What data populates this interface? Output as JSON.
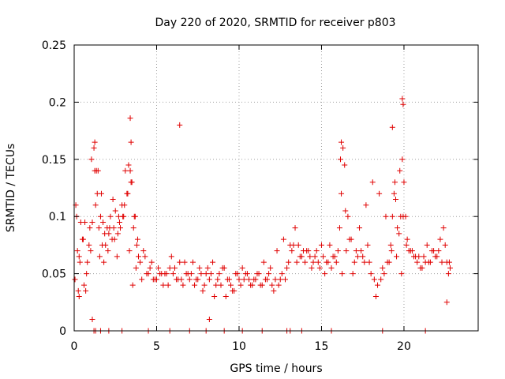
{
  "chart_data": {
    "type": "scatter",
    "title": "Day 220 of 2020, SRMTID for receiver p803",
    "xlabel": "GPS time / hours",
    "ylabel": "SRMTID / TECUs",
    "xlim": [
      0,
      24.5
    ],
    "ylim": [
      0,
      0.25
    ],
    "xticks": [
      0,
      5,
      10,
      15,
      20
    ],
    "xtick_labels": [
      "0",
      "5",
      "10",
      "15",
      "20"
    ],
    "yticks": [
      0,
      0.05,
      0.1,
      0.15,
      0.2,
      0.25
    ],
    "ytick_labels": [
      "0",
      "0.05",
      "0.1",
      "0.15",
      "0.2",
      "0.25"
    ],
    "grid": true,
    "marker": "plus",
    "color": "#e00000",
    "series": [
      {
        "name": "SRMTID",
        "x": [
          0.05,
          0.1,
          0.2,
          0.3,
          0.4,
          0.5,
          0.6,
          0.7,
          0.8,
          0.9,
          1.0,
          1.1,
          1.2,
          1.3,
          1.4,
          1.5,
          1.6,
          1.7,
          1.8,
          1.9,
          2.0,
          2.1,
          2.2,
          2.3,
          2.4,
          2.5,
          2.6,
          2.7,
          2.8,
          2.9,
          3.0,
          3.1,
          3.2,
          3.3,
          3.4,
          3.5,
          3.6,
          3.7,
          3.8,
          3.9,
          4.0,
          4.2,
          4.4,
          4.6,
          4.8,
          5.0,
          5.2,
          5.4,
          5.6,
          5.8,
          6.0,
          6.2,
          6.4,
          6.6,
          6.8,
          7.0,
          7.2,
          7.4,
          7.6,
          7.8,
          8.0,
          8.2,
          8.4,
          8.6,
          8.8,
          9.0,
          9.2,
          9.4,
          9.6,
          9.8,
          10.0,
          10.2,
          10.4,
          10.6,
          10.8,
          11.0,
          11.2,
          11.4,
          11.6,
          11.8,
          12.0,
          12.2,
          12.4,
          12.6,
          12.8,
          13.0,
          13.2,
          13.4,
          13.6,
          13.8,
          14.0,
          14.2,
          14.4,
          14.6,
          14.8,
          15.0,
          15.2,
          15.4,
          15.6,
          15.8,
          16.0,
          16.1,
          16.2,
          16.3,
          16.4,
          16.6,
          16.8,
          17.0,
          17.2,
          17.4,
          17.6,
          17.8,
          18.0,
          18.2,
          18.4,
          18.6,
          18.8,
          19.0,
          19.2,
          19.3,
          19.4,
          19.5,
          19.6,
          19.7,
          19.8,
          19.9,
          20.0,
          20.1,
          20.2,
          20.4,
          20.6,
          20.8,
          21.0,
          21.2,
          21.4,
          21.6,
          21.8,
          22.0,
          22.2,
          22.4,
          22.6,
          22.8,
          0.15,
          0.35,
          0.55,
          0.75,
          0.95,
          1.25,
          1.45,
          1.65,
          1.85,
          2.15,
          2.45,
          2.75,
          3.05,
          3.25,
          3.45,
          3.65,
          3.85,
          4.3,
          4.7,
          5.1,
          5.5,
          5.9,
          6.3,
          6.7,
          7.1,
          7.5,
          7.9,
          8.3,
          8.7,
          9.1,
          9.5,
          9.9,
          10.3,
          10.7,
          11.1,
          11.5,
          11.9,
          12.3,
          12.7,
          13.1,
          13.5,
          13.9,
          14.3,
          14.7,
          15.1,
          15.5,
          15.9,
          16.25,
          16.5,
          16.9,
          17.3,
          17.7,
          18.1,
          18.5,
          18.9,
          19.25,
          19.55,
          19.85,
          20.15,
          20.5,
          20.9,
          21.3,
          21.7,
          22.1,
          22.5,
          22.75,
          0.25,
          0.65,
          1.05,
          1.35,
          1.55,
          1.75,
          2.05,
          2.35,
          2.65,
          2.95,
          3.35,
          3.55,
          3.75,
          4.1,
          4.5,
          4.9,
          5.3,
          5.7,
          6.1,
          6.5,
          6.9,
          7.3,
          7.7,
          8.1,
          8.5,
          8.9,
          9.3,
          9.7,
          10.1,
          10.5,
          10.9,
          11.3,
          11.7,
          12.1,
          12.5,
          12.9,
          13.3,
          13.7,
          14.1,
          14.5,
          14.9,
          15.3,
          15.7,
          16.15,
          16.45,
          16.7,
          17.1,
          17.5,
          17.9,
          18.3,
          18.7,
          19.1,
          19.45,
          19.75,
          19.95,
          20.3,
          20.7,
          21.1,
          21.5,
          21.9,
          22.3,
          22.7,
          3.4,
          6.4,
          19.9,
          19.95,
          3.45,
          19.3,
          1.25,
          16.2,
          0.3,
          1.1,
          8.2,
          22.6,
          1.2,
          1.3,
          1.6,
          2.1,
          2.9,
          4.5,
          5.8,
          7.0,
          8.0,
          9.1,
          10.2,
          11.4,
          12.9,
          13.1,
          13.8,
          15.6,
          18.7,
          21.3
        ],
        "y": [
          0.045,
          0.11,
          0.07,
          0.065,
          0.095,
          0.08,
          0.04,
          0.035,
          0.06,
          0.075,
          0.07,
          0.095,
          0.16,
          0.11,
          0.12,
          0.09,
          0.1,
          0.075,
          0.06,
          0.075,
          0.09,
          0.085,
          0.1,
          0.08,
          0.09,
          0.105,
          0.065,
          0.1,
          0.09,
          0.11,
          0.1,
          0.14,
          0.12,
          0.145,
          0.14,
          0.13,
          0.09,
          0.1,
          0.075,
          0.065,
          0.06,
          0.07,
          0.05,
          0.055,
          0.045,
          0.045,
          0.05,
          0.04,
          0.05,
          0.055,
          0.05,
          0.045,
          0.06,
          0.04,
          0.05,
          0.045,
          0.06,
          0.045,
          0.055,
          0.035,
          0.05,
          0.045,
          0.06,
          0.04,
          0.05,
          0.055,
          0.03,
          0.045,
          0.035,
          0.05,
          0.045,
          0.055,
          0.05,
          0.045,
          0.04,
          0.045,
          0.05,
          0.04,
          0.045,
          0.05,
          0.04,
          0.045,
          0.04,
          0.05,
          0.045,
          0.06,
          0.07,
          0.09,
          0.075,
          0.065,
          0.06,
          0.07,
          0.055,
          0.065,
          0.06,
          0.075,
          0.05,
          0.06,
          0.055,
          0.065,
          0.07,
          0.09,
          0.12,
          0.16,
          0.145,
          0.1,
          0.08,
          0.06,
          0.065,
          0.07,
          0.06,
          0.075,
          0.05,
          0.045,
          0.04,
          0.045,
          0.05,
          0.06,
          0.075,
          0.1,
          0.12,
          0.115,
          0.09,
          0.085,
          0.1,
          0.15,
          0.13,
          0.1,
          0.08,
          0.07,
          0.065,
          0.06,
          0.055,
          0.065,
          0.075,
          0.06,
          0.07,
          0.065,
          0.08,
          0.09,
          0.06,
          0.055,
          0.1,
          0.06,
          0.08,
          0.05,
          0.09,
          0.14,
          0.14,
          0.12,
          0.085,
          0.09,
          0.08,
          0.095,
          0.11,
          0.12,
          0.13,
          0.1,
          0.08,
          0.065,
          0.06,
          0.055,
          0.05,
          0.065,
          0.045,
          0.06,
          0.05,
          0.045,
          0.04,
          0.05,
          0.045,
          0.055,
          0.04,
          0.05,
          0.045,
          0.04,
          0.05,
          0.06,
          0.055,
          0.07,
          0.08,
          0.075,
          0.06,
          0.07,
          0.065,
          0.07,
          0.065,
          0.075,
          0.06,
          0.05,
          0.07,
          0.05,
          0.09,
          0.11,
          0.13,
          0.12,
          0.1,
          0.07,
          0.065,
          0.05,
          0.075,
          0.07,
          0.065,
          0.06,
          0.07,
          0.07,
          0.075,
          0.06,
          0.035,
          0.095,
          0.15,
          0.14,
          0.065,
          0.095,
          0.07,
          0.115,
          0.085,
          0.1,
          0.07,
          0.04,
          0.055,
          0.045,
          0.05,
          0.045,
          0.05,
          0.04,
          0.055,
          0.045,
          0.05,
          0.04,
          0.05,
          0.055,
          0.03,
          0.04,
          0.045,
          0.035,
          0.04,
          0.05,
          0.045,
          0.04,
          0.045,
          0.035,
          0.045,
          0.055,
          0.075,
          0.065,
          0.07,
          0.06,
          0.055,
          0.06,
          0.065,
          0.15,
          0.105,
          0.08,
          0.07,
          0.065,
          0.06,
          0.03,
          0.055,
          0.06,
          0.13,
          0.14,
          0.1,
          0.07,
          0.065,
          0.055,
          0.06,
          0.065,
          0.06,
          0.05,
          0.186,
          0.18,
          0.203,
          0.198,
          0.165,
          0.178,
          0.165,
          0.165,
          0.03,
          0.01,
          0.01,
          0.025,
          0,
          0,
          0,
          0,
          0,
          0,
          0,
          0,
          0,
          0,
          0,
          0,
          0,
          0,
          0,
          0,
          0,
          0
        ]
      }
    ]
  }
}
